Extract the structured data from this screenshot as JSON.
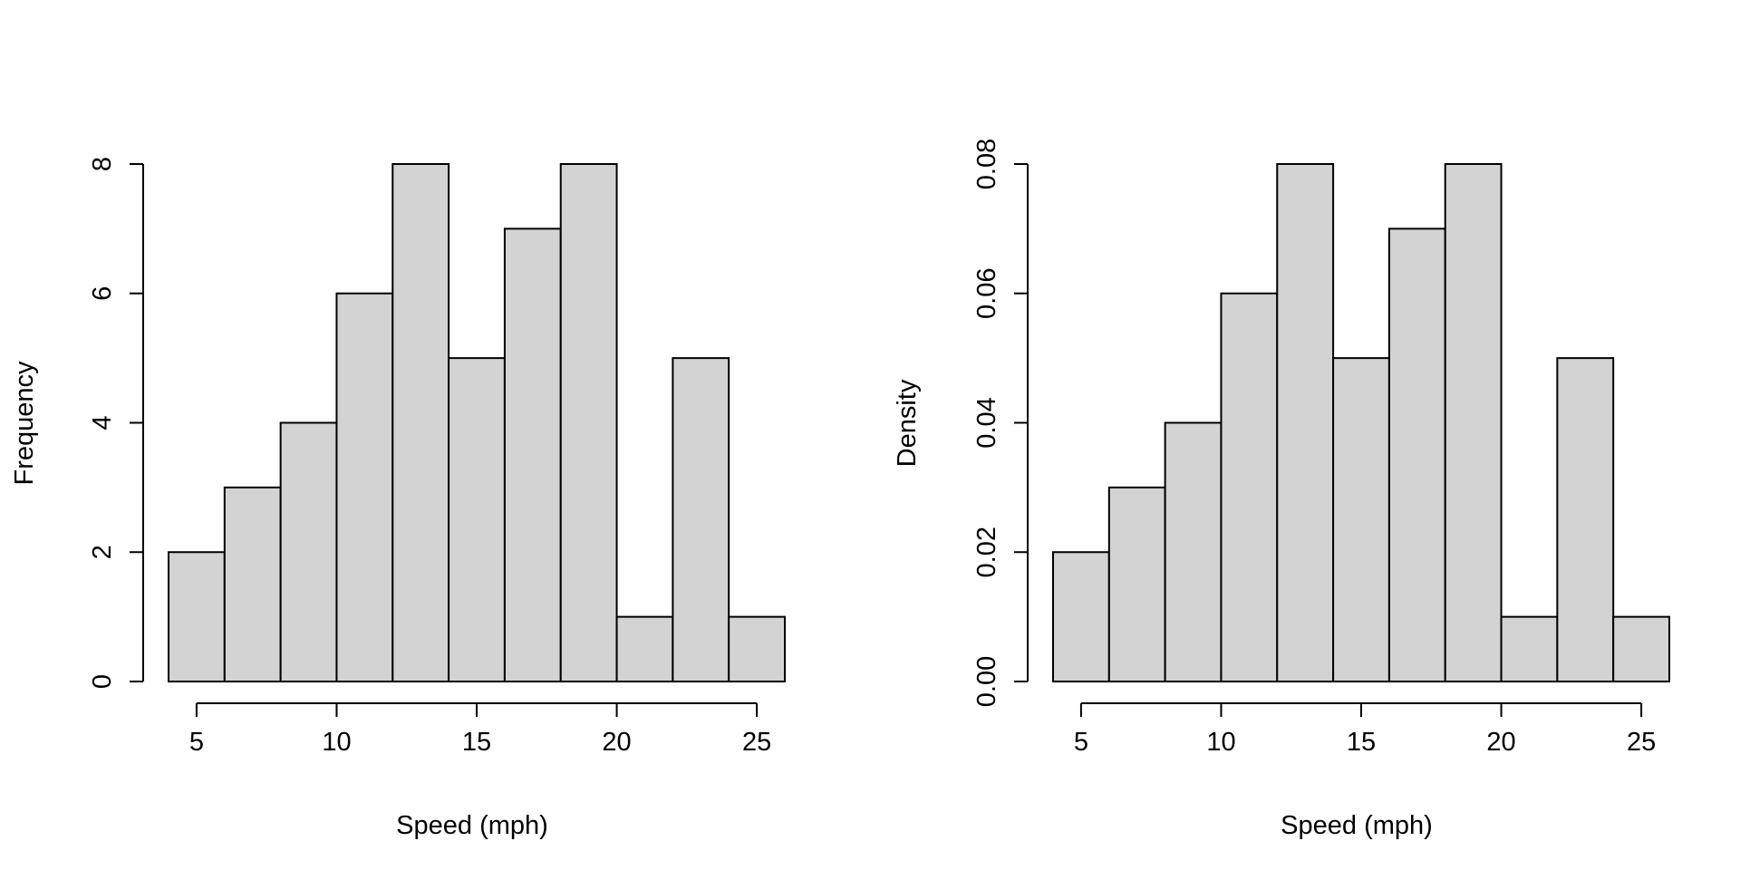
{
  "colors": {
    "bar_fill": "#d3d3d3",
    "bar_stroke": "#000000",
    "axis": "#000000",
    "background": "#ffffff"
  },
  "chart_data": [
    {
      "type": "bar",
      "title": "",
      "xlabel": "Speed (mph)",
      "ylabel": "Frequency",
      "bin_edges": [
        4,
        6,
        8,
        10,
        12,
        14,
        16,
        18,
        20,
        22,
        24,
        26
      ],
      "values": [
        2,
        3,
        4,
        6,
        8,
        5,
        7,
        8,
        1,
        5,
        1
      ],
      "xlim": [
        4,
        26
      ],
      "ylim": [
        0,
        8
      ],
      "xticks": [
        5,
        10,
        15,
        20,
        25
      ],
      "xtick_labels": [
        "5",
        "10",
        "15",
        "20",
        "25"
      ],
      "yticks": [
        0,
        2,
        4,
        6,
        8
      ],
      "ytick_labels": [
        "0",
        "2",
        "4",
        "6",
        "8"
      ],
      "grid": false,
      "legend": "none"
    },
    {
      "type": "bar",
      "title": "",
      "xlabel": "Speed (mph)",
      "ylabel": "Density",
      "bin_edges": [
        4,
        6,
        8,
        10,
        12,
        14,
        16,
        18,
        20,
        22,
        24,
        26
      ],
      "values": [
        0.02,
        0.03,
        0.04,
        0.06,
        0.08,
        0.05,
        0.07,
        0.08,
        0.01,
        0.05,
        0.01
      ],
      "xlim": [
        4,
        26
      ],
      "ylim": [
        0,
        0.08
      ],
      "xticks": [
        5,
        10,
        15,
        20,
        25
      ],
      "xtick_labels": [
        "5",
        "10",
        "15",
        "20",
        "25"
      ],
      "yticks": [
        0,
        0.02,
        0.04,
        0.06,
        0.08
      ],
      "ytick_labels": [
        "0.00",
        "0.02",
        "0.04",
        "0.06",
        "0.08"
      ],
      "grid": false,
      "legend": "none"
    }
  ]
}
